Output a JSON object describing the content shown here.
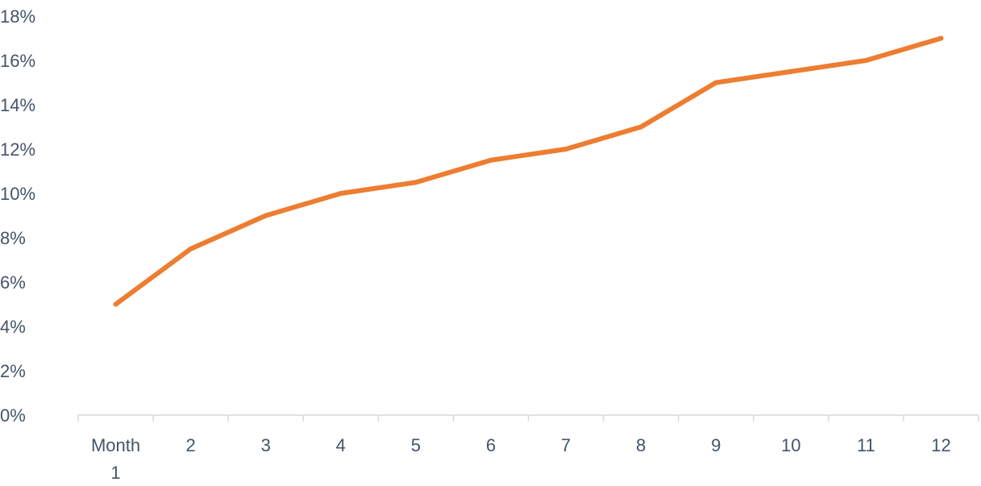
{
  "chart_data": {
    "type": "line",
    "categories": [
      "Month 1",
      "2",
      "3",
      "4",
      "5",
      "6",
      "7",
      "8",
      "9",
      "10",
      "11",
      "12"
    ],
    "series": [
      {
        "values": [
          5,
          7.5,
          9,
          10,
          10.5,
          11.5,
          12,
          13,
          15,
          15.5,
          16,
          17
        ]
      }
    ],
    "ylim": [
      0,
      18
    ],
    "yticks": [
      "0%",
      "2%",
      "4%",
      "6%",
      "8%",
      "10%",
      "12%",
      "14%",
      "16%",
      "18%"
    ],
    "grid": false,
    "legend": "none",
    "line_color": "#ed7d31",
    "axis_color": "#d9d9d9",
    "text_color": "#44546a"
  }
}
